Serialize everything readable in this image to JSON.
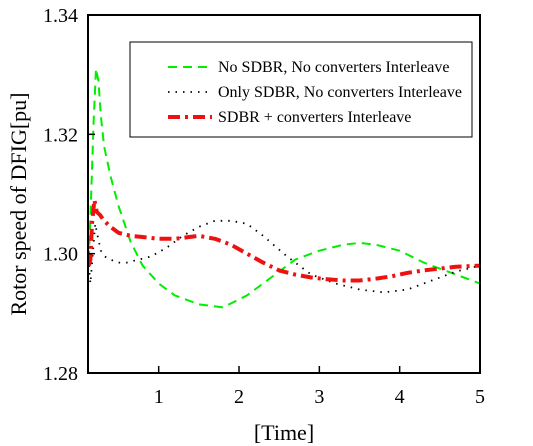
{
  "chart_data": {
    "type": "line",
    "title": "",
    "xlabel": "[Time]",
    "ylabel": "Rotor speed of DFIG[pu]",
    "xlim": [
      0.12,
      5.0
    ],
    "ylim": [
      1.28,
      1.34
    ],
    "xticks": [
      {
        "value": 1,
        "label": "1"
      },
      {
        "value": 2,
        "label": "2"
      },
      {
        "value": 3,
        "label": "3"
      },
      {
        "value": 4,
        "label": "4"
      },
      {
        "value": 5,
        "label": "5"
      }
    ],
    "yticks": [
      {
        "value": 1.28,
        "label": "1.28"
      },
      {
        "value": 1.3,
        "label": "1.30"
      },
      {
        "value": 1.32,
        "label": "1.32"
      },
      {
        "value": 1.34,
        "label": "1.34"
      }
    ],
    "grid": false,
    "legend_position": "top-right",
    "series": [
      {
        "name": "No SDBR, No converters Interleave",
        "color": "#00ee00",
        "style": "dashed",
        "x": [
          0.13,
          0.16,
          0.19,
          0.22,
          0.25,
          0.28,
          0.32,
          0.4,
          0.5,
          0.65,
          0.8,
          1.0,
          1.2,
          1.5,
          1.8,
          2.1,
          2.4,
          2.7,
          3.0,
          3.3,
          3.5,
          3.7,
          4.0,
          4.3,
          4.6,
          4.8,
          5.0
        ],
        "y": [
          1.299,
          1.31,
          1.322,
          1.331,
          1.329,
          1.323,
          1.318,
          1.313,
          1.308,
          1.302,
          1.298,
          1.295,
          1.293,
          1.2915,
          1.291,
          1.293,
          1.296,
          1.299,
          1.3005,
          1.3015,
          1.3018,
          1.3015,
          1.3005,
          1.2985,
          1.297,
          1.296,
          1.295
        ]
      },
      {
        "name": "Only SDBR, No converters Interleave",
        "color": "#000000",
        "style": "dotted",
        "x": [
          0.13,
          0.15,
          0.18,
          0.21,
          0.24,
          0.28,
          0.33,
          0.4,
          0.5,
          0.6,
          0.75,
          0.9,
          1.1,
          1.3,
          1.5,
          1.7,
          1.9,
          2.1,
          2.3,
          2.6,
          2.9,
          3.2,
          3.5,
          3.8,
          4.1,
          4.4,
          4.7,
          5.0
        ],
        "y": [
          1.298,
          1.295,
          1.3,
          1.305,
          1.303,
          1.3005,
          1.2995,
          1.299,
          1.2985,
          1.2985,
          1.299,
          1.2995,
          1.301,
          1.303,
          1.3045,
          1.3055,
          1.3055,
          1.305,
          1.303,
          1.2995,
          1.2965,
          1.295,
          1.294,
          1.2935,
          1.294,
          1.2955,
          1.297,
          1.298
        ]
      },
      {
        "name": "SDBR + converters Interleave",
        "color": "#ee1111",
        "style": "dashdot",
        "x": [
          0.13,
          0.15,
          0.17,
          0.2,
          0.23,
          0.27,
          0.32,
          0.4,
          0.5,
          0.65,
          0.8,
          1.0,
          1.2,
          1.5,
          1.7,
          1.9,
          2.1,
          2.3,
          2.5,
          2.7,
          2.9,
          3.1,
          3.3,
          3.5,
          3.7,
          3.9,
          4.1,
          4.3,
          4.5,
          4.7,
          5.0
        ],
        "y": [
          1.298,
          1.299,
          1.305,
          1.309,
          1.307,
          1.3065,
          1.3055,
          1.3045,
          1.3035,
          1.303,
          1.3028,
          1.3025,
          1.3025,
          1.303,
          1.3025,
          1.3015,
          1.3,
          1.2985,
          1.2972,
          1.2965,
          1.296,
          1.2957,
          1.2955,
          1.2955,
          1.2958,
          1.2962,
          1.2968,
          1.2972,
          1.2975,
          1.2978,
          1.298
        ]
      }
    ]
  }
}
